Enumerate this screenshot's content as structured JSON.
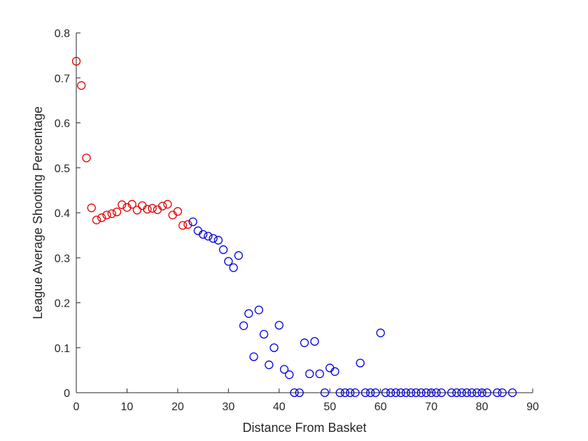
{
  "chart_data": {
    "type": "scatter",
    "xlabel": "Distance From Basket",
    "ylabel": "League Average Shooting Percentage",
    "xlim": [
      0,
      90
    ],
    "ylim": [
      0,
      0.8
    ],
    "xticks": [
      "0",
      "10",
      "20",
      "30",
      "40",
      "50",
      "60",
      "70",
      "80",
      "90"
    ],
    "yticks": [
      "0",
      "0.1",
      "0.2",
      "0.3",
      "0.4",
      "0.5",
      "0.6",
      "0.7",
      "0.8"
    ],
    "grid": false,
    "legend": "none",
    "series": [
      {
        "color": "#e00000",
        "marker": "circle-open",
        "points": [
          [
            0,
            0.737
          ],
          [
            1,
            0.683
          ],
          [
            2,
            0.522
          ],
          [
            3,
            0.411
          ],
          [
            4,
            0.384
          ],
          [
            5,
            0.389
          ],
          [
            6,
            0.395
          ],
          [
            7,
            0.398
          ],
          [
            8,
            0.402
          ],
          [
            9,
            0.418
          ],
          [
            10,
            0.412
          ],
          [
            11,
            0.419
          ],
          [
            12,
            0.406
          ],
          [
            13,
            0.416
          ],
          [
            14,
            0.408
          ],
          [
            15,
            0.41
          ],
          [
            16,
            0.407
          ],
          [
            17,
            0.415
          ],
          [
            18,
            0.419
          ],
          [
            19,
            0.395
          ],
          [
            20,
            0.403
          ],
          [
            21,
            0.372
          ],
          [
            22,
            0.374
          ]
        ]
      },
      {
        "color": "#0000e0",
        "marker": "circle-open",
        "points": [
          [
            23,
            0.38
          ],
          [
            24,
            0.36
          ],
          [
            25,
            0.352
          ],
          [
            26,
            0.348
          ],
          [
            27,
            0.343
          ],
          [
            28,
            0.339
          ],
          [
            29,
            0.318
          ],
          [
            30,
            0.292
          ],
          [
            31,
            0.278
          ],
          [
            32,
            0.305
          ],
          [
            33,
            0.149
          ],
          [
            34,
            0.176
          ],
          [
            35,
            0.08
          ],
          [
            36,
            0.184
          ],
          [
            37,
            0.13
          ],
          [
            38,
            0.062
          ],
          [
            39,
            0.1
          ],
          [
            40,
            0.15
          ],
          [
            41,
            0.052
          ],
          [
            42,
            0.04
          ],
          [
            43,
            0.0
          ],
          [
            44,
            0.0
          ],
          [
            45,
            0.111
          ],
          [
            46,
            0.042
          ],
          [
            47,
            0.114
          ],
          [
            48,
            0.042
          ],
          [
            49,
            0.0
          ],
          [
            50,
            0.055
          ],
          [
            51,
            0.047
          ],
          [
            52,
            0.0
          ],
          [
            53,
            0.0
          ],
          [
            54,
            0.0
          ],
          [
            55,
            0.0
          ],
          [
            56,
            0.066
          ],
          [
            57,
            0.0
          ],
          [
            58,
            0.0
          ],
          [
            59,
            0.0
          ],
          [
            60,
            0.133
          ],
          [
            61,
            0.0
          ],
          [
            62,
            0.0
          ],
          [
            63,
            0.0
          ],
          [
            64,
            0.0
          ],
          [
            65,
            0.0
          ],
          [
            66,
            0.0
          ],
          [
            67,
            0.0
          ],
          [
            68,
            0.0
          ],
          [
            69,
            0.0
          ],
          [
            70,
            0.0
          ],
          [
            71,
            0.0
          ],
          [
            72,
            0.0
          ],
          [
            74,
            0.0
          ],
          [
            75,
            0.0
          ],
          [
            76,
            0.0
          ],
          [
            77,
            0.0
          ],
          [
            78,
            0.0
          ],
          [
            79,
            0.0
          ],
          [
            80,
            0.0
          ],
          [
            81,
            0.0
          ],
          [
            83,
            0.0
          ],
          [
            84,
            0.0
          ],
          [
            86,
            0.0
          ]
        ]
      }
    ]
  }
}
